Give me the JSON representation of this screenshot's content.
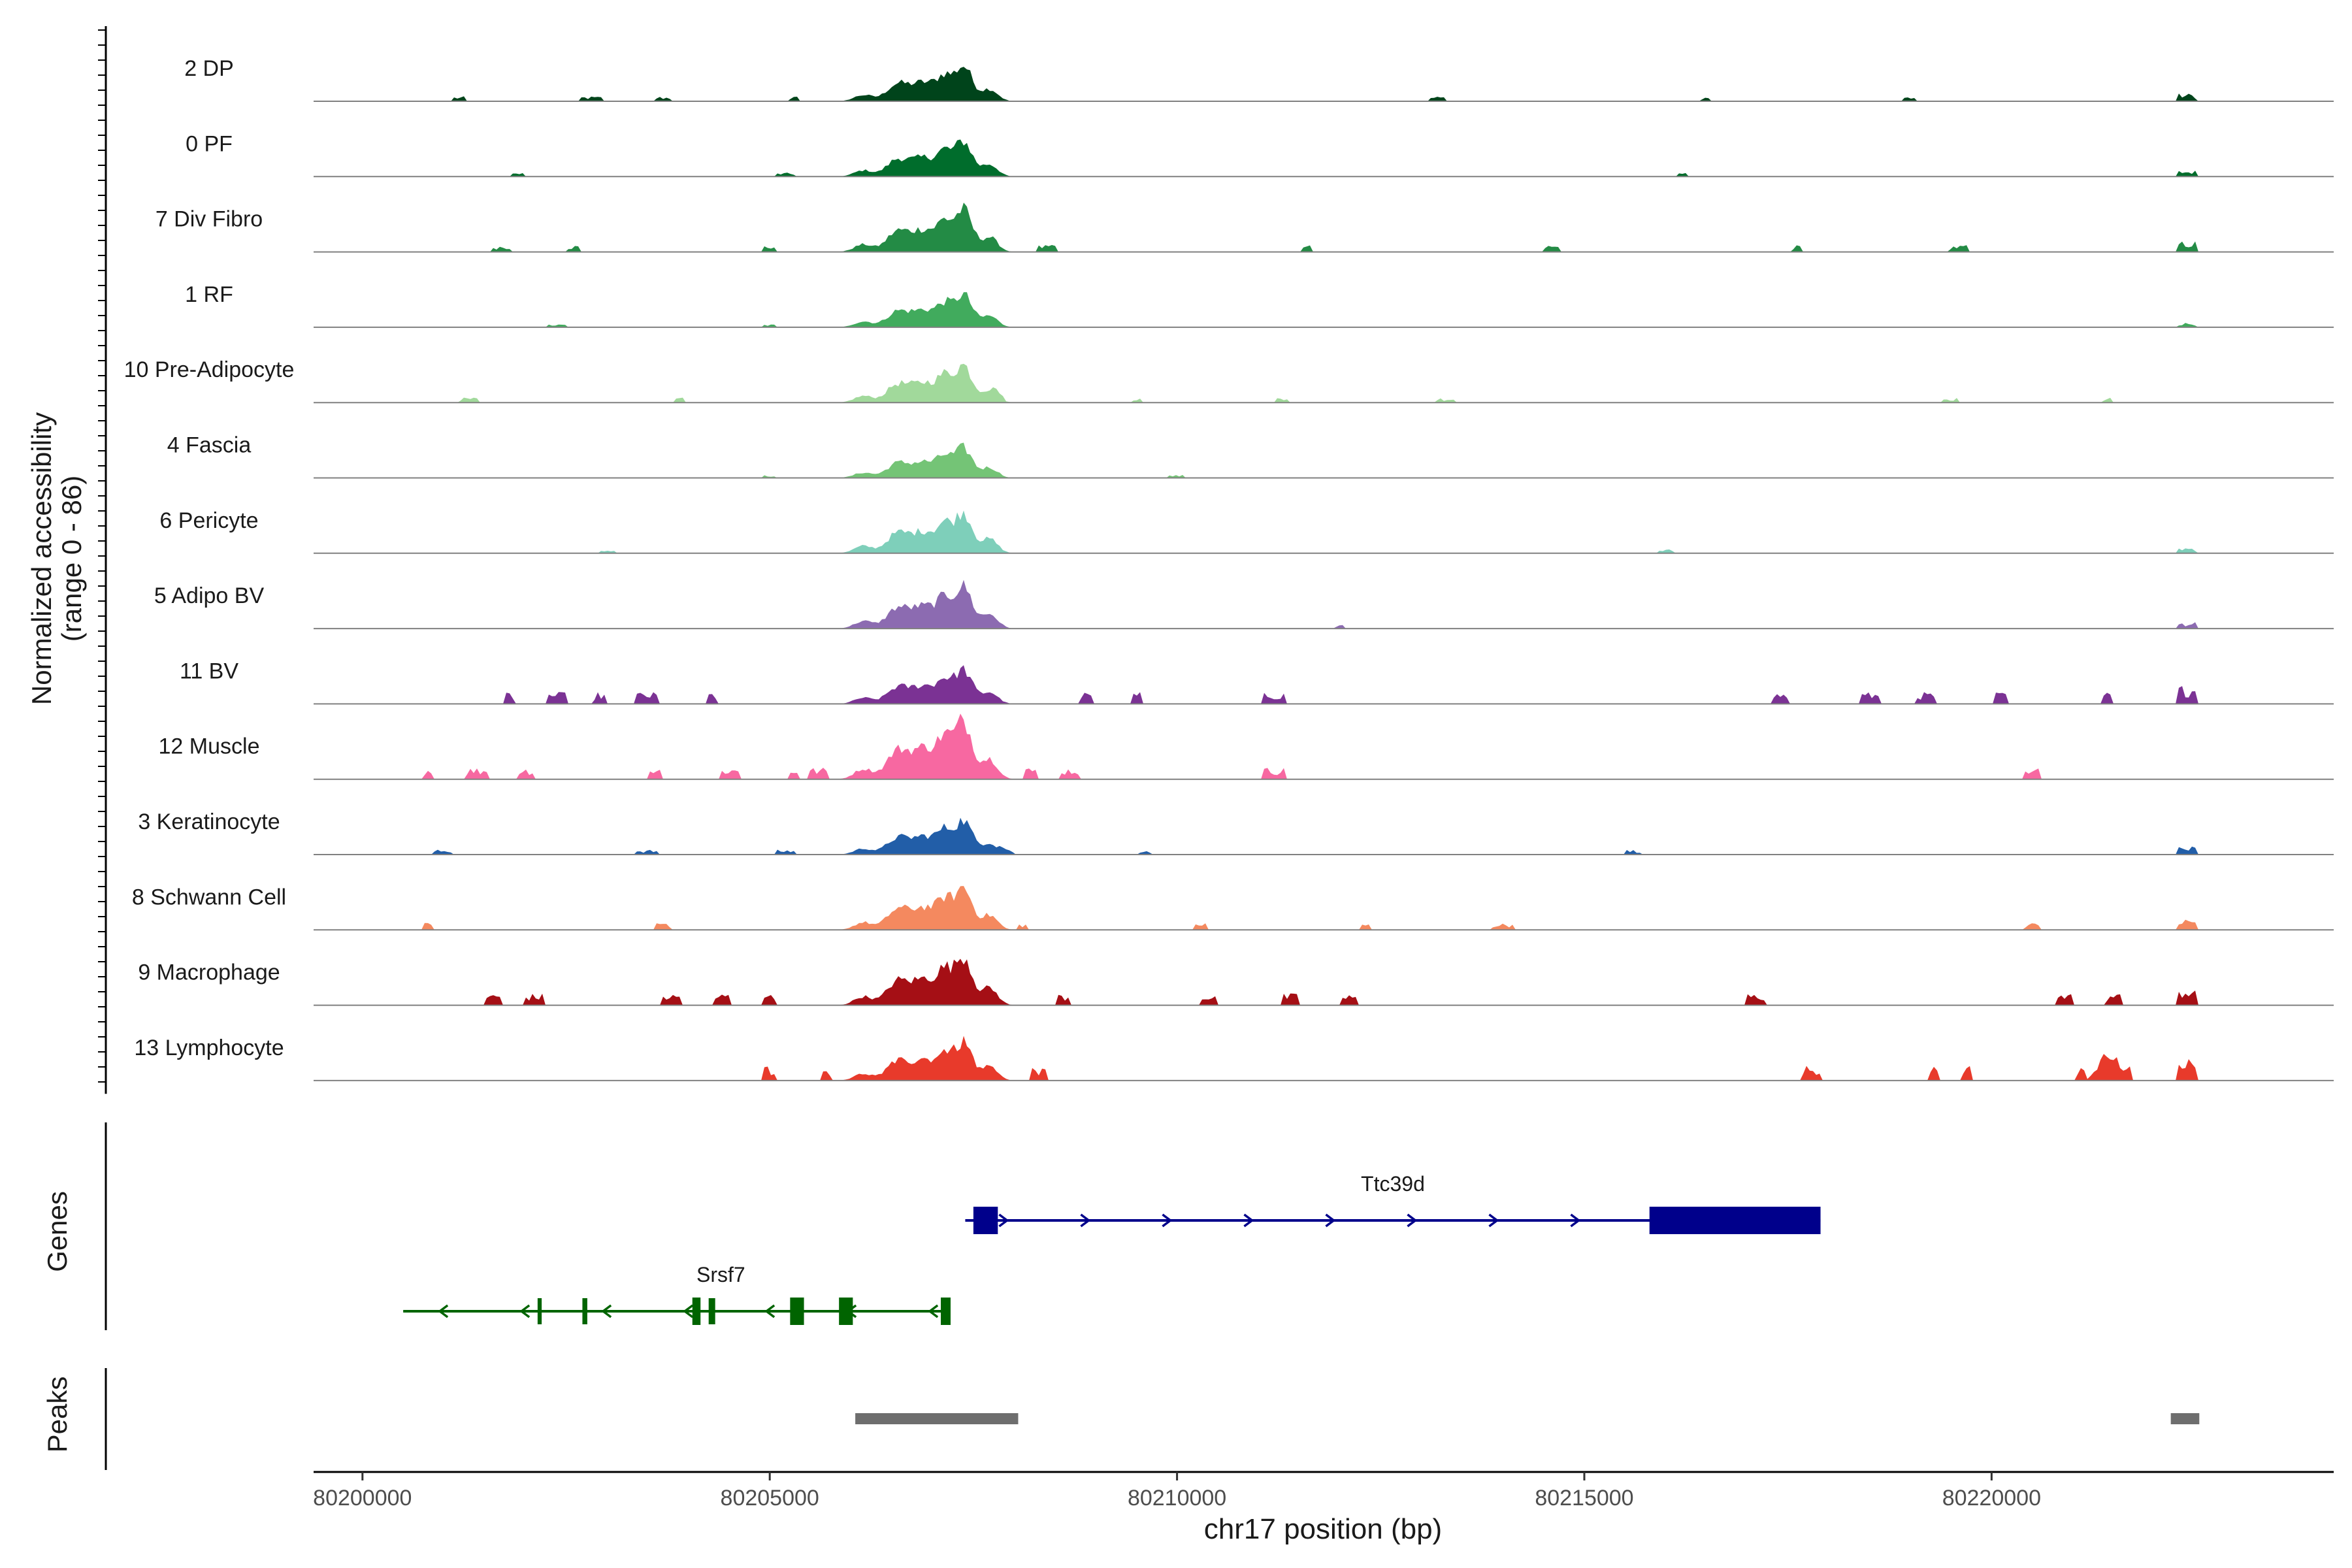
{
  "chart_data": {
    "type": "area",
    "title": "",
    "ylabel": [
      "Normalized accessibility",
      "(range 0 - 86)"
    ],
    "xlabel": "chr17 position (bp)",
    "xlim": [
      80199400,
      80224200
    ],
    "xticks": [
      80200000,
      80205000,
      80210000,
      80215000,
      80220000
    ],
    "xtick_labels": [
      "80200000",
      "80205000",
      "80210000",
      "80215000",
      "80220000"
    ],
    "ylim": [
      0,
      86
    ],
    "series": [
      {
        "name": "2 DP",
        "color": "#00441b",
        "peak": 0.52,
        "bg": 0.05,
        "noise": [
          80201200,
          80202800,
          80203700,
          80205300,
          80213200,
          80216500,
          80219000,
          80222400
        ]
      },
      {
        "name": "0 PF",
        "color": "#006d2c",
        "peak": 0.52,
        "bg": 0.04,
        "noise": [
          80201900,
          80205200,
          80216200,
          80222400
        ]
      },
      {
        "name": "7 Div Fibro",
        "color": "#238b45",
        "peak": 0.62,
        "bg": 0.07,
        "noise": [
          80201700,
          80202600,
          80205000,
          80208400,
          80211600,
          80214600,
          80217600,
          80219600,
          80222400
        ]
      },
      {
        "name": "1 RF",
        "color": "#41ab5d",
        "peak": 0.48,
        "bg": 0.03,
        "noise": [
          80202400,
          80205000,
          80222400
        ]
      },
      {
        "name": "10 Pre-Adipocyte",
        "color": "#a1d99b",
        "peak": 0.55,
        "bg": 0.05,
        "noise": [
          80201300,
          80203900,
          80207800,
          80209500,
          80211300,
          80213300,
          80219500,
          80221400
        ]
      },
      {
        "name": "4 Fascia",
        "color": "#74c476",
        "peak": 0.44,
        "bg": 0.03,
        "noise": [
          80205000,
          80210000
        ]
      },
      {
        "name": "6 Pericyte",
        "color": "#7ecfba",
        "peak": 0.6,
        "bg": 0.04,
        "noise": [
          80203000,
          80216000,
          80222400
        ]
      },
      {
        "name": "5 Adipo BV",
        "color": "#8c6bb1",
        "peak": 0.62,
        "bg": 0.04,
        "noise": [
          80212000,
          80222400
        ]
      },
      {
        "name": "11 BV",
        "color": "#7b3294",
        "peak": 0.5,
        "bg": 0.12,
        "noise": [
          80201800,
          80202400,
          80202900,
          80203500,
          80204300,
          80208900,
          80209500,
          80211200,
          80217400,
          80218500,
          80219200,
          80220100,
          80221400,
          80222400
        ]
      },
      {
        "name": "12 Muscle",
        "color": "#f768a1",
        "peak": 0.86,
        "bg": 0.12,
        "noise": [
          80200800,
          80201400,
          80202000,
          80203600,
          80204500,
          80205300,
          80205600,
          80208200,
          80208700,
          80211200,
          80220500
        ]
      },
      {
        "name": "3 Keratinocyte",
        "color": "#225ea8",
        "peak": 0.5,
        "bg": 0.05,
        "noise": [
          80201000,
          80203500,
          80205200,
          80207900,
          80209600,
          80215600,
          80222400
        ]
      },
      {
        "name": "8 Schwann Cell",
        "color": "#f4895f",
        "peak": 0.62,
        "bg": 0.07,
        "noise": [
          80200800,
          80203700,
          80208100,
          80210300,
          80212300,
          80214000,
          80220500,
          80222400
        ]
      },
      {
        "name": "9 Macrophage",
        "color": "#a50f15",
        "peak": 0.72,
        "bg": 0.12,
        "noise": [
          80201600,
          80202100,
          80203800,
          80204400,
          80205000,
          80208600,
          80210400,
          80211400,
          80212100,
          80217100,
          80220900,
          80221500,
          80222400
        ]
      },
      {
        "name": "13 Lymphocyte",
        "color": "#e83a2b",
        "peak": 0.56,
        "bg": 0.15,
        "noise": [
          80205000,
          80205700,
          80208300,
          80217800,
          80219300,
          80219700,
          80221100,
          80221600,
          80222400
        ]
      }
    ],
    "genes": [
      {
        "name": "Ttc39d",
        "strand": "+",
        "color": "#00008b",
        "start": 80207400,
        "end": 80217900,
        "exons": [
          [
            80207500,
            80207800
          ],
          [
            80215800,
            80217900
          ]
        ]
      },
      {
        "name": "Srsf7",
        "strand": "-",
        "color": "#006400",
        "start": 80200500,
        "end": 80207200,
        "exons": [
          [
            80202150,
            80202200
          ],
          [
            80202700,
            80202760
          ],
          [
            80204050,
            80204150
          ],
          [
            80204250,
            80204330
          ],
          [
            80205250,
            80205420
          ],
          [
            80205850,
            80206020
          ],
          [
            80207100,
            80207220
          ]
        ]
      }
    ],
    "peaks": [
      [
        80206050,
        80208050
      ],
      [
        80222200,
        80222550
      ]
    ],
    "panel_labels": {
      "genes": "Genes",
      "peaks": "Peaks"
    }
  }
}
